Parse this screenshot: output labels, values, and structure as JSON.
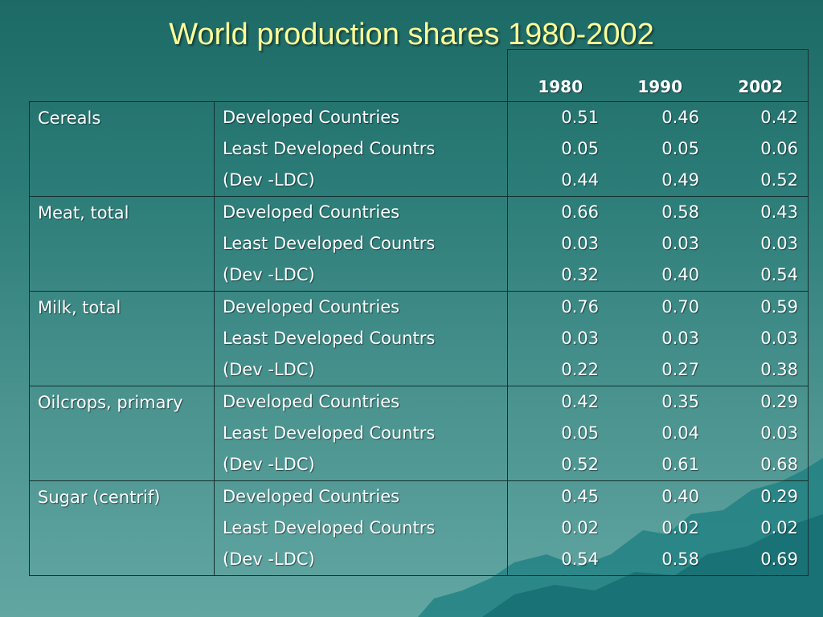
{
  "slide": {
    "title": "World production shares 1980-2002"
  },
  "table": {
    "years": [
      "1980",
      "1990",
      "2002"
    ],
    "groups": [
      {
        "name": "Cereals",
        "rows": [
          {
            "label": "Developed Countries",
            "values": [
              "0.51",
              "0.46",
              "0.42"
            ]
          },
          {
            "label": "Least Developed Countrs",
            "values": [
              "0.05",
              "0.05",
              "0.06"
            ]
          },
          {
            "label": "(Dev -LDC)",
            "values": [
              "0.44",
              "0.49",
              "0.52"
            ]
          }
        ]
      },
      {
        "name": "Meat, total",
        "rows": [
          {
            "label": "Developed Countries",
            "values": [
              "0.66",
              "0.58",
              "0.43"
            ]
          },
          {
            "label": "Least Developed Countrs",
            "values": [
              "0.03",
              "0.03",
              "0.03"
            ]
          },
          {
            "label": "(Dev -LDC)",
            "values": [
              "0.32",
              "0.40",
              "0.54"
            ]
          }
        ]
      },
      {
        "name": "Milk, total",
        "rows": [
          {
            "label": "Developed Countries",
            "values": [
              "0.76",
              "0.70",
              "0.59"
            ]
          },
          {
            "label": "Least Developed Countrs",
            "values": [
              "0.03",
              "0.03",
              "0.03"
            ]
          },
          {
            "label": "(Dev -LDC)",
            "values": [
              "0.22",
              "0.27",
              "0.38"
            ]
          }
        ]
      },
      {
        "name": "Oilcrops, primary",
        "rows": [
          {
            "label": "Developed Countries",
            "values": [
              "0.42",
              "0.35",
              "0.29"
            ]
          },
          {
            "label": "Least Developed Countrs",
            "values": [
              "0.05",
              "0.04",
              "0.03"
            ]
          },
          {
            "label": "(Dev -LDC)",
            "values": [
              "0.52",
              "0.61",
              "0.68"
            ]
          }
        ]
      },
      {
        "name": "Sugar (centrif)",
        "rows": [
          {
            "label": "Developed Countries",
            "values": [
              "0.45",
              "0.40",
              "0.29"
            ]
          },
          {
            "label": "Least Developed Countrs",
            "values": [
              "0.02",
              "0.02",
              "0.02"
            ]
          },
          {
            "label": "(Dev -LDC)",
            "values": [
              "0.54",
              "0.58",
              "0.69"
            ]
          }
        ]
      }
    ]
  },
  "colors": {
    "title": "#ffff99",
    "text": "#ffffff",
    "background": "#2b7c78",
    "border": "#14302e"
  }
}
